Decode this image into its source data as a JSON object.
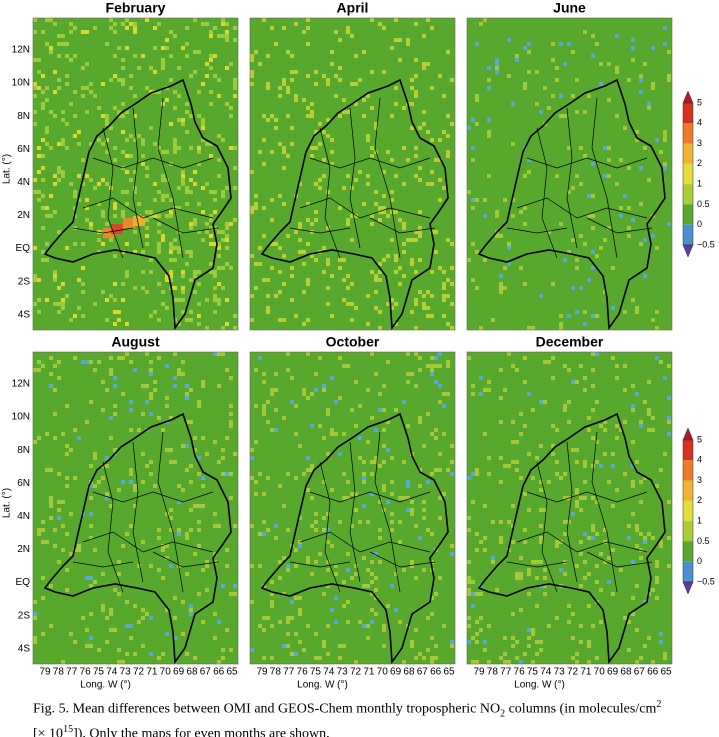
{
  "panels": [
    {
      "title": "February"
    },
    {
      "title": "April"
    },
    {
      "title": "June"
    },
    {
      "title": "August"
    },
    {
      "title": "October"
    },
    {
      "title": "December"
    }
  ],
  "lat_label": "Lat. (°)",
  "lat_ticks": [
    "12N",
    "10N",
    "8N",
    "6N",
    "4N",
    "2N",
    "EQ",
    "2S",
    "4S"
  ],
  "lon_label": "Long. W (°)",
  "lon_ticks": [
    "79",
    "78",
    "77",
    "76",
    "75",
    "74",
    "73",
    "72",
    "71",
    "70",
    "69",
    "68",
    "67",
    "66",
    "65"
  ],
  "colorbar_labels": [
    "5",
    "4",
    "3",
    "2",
    "1",
    "0.5",
    "0",
    "−0.5"
  ],
  "caption": [
    "Fig. 5. Mean differences between OMI and GEOS-Chem monthly tropospheric NO",
    "2",
    " columns (in molecules/cm",
    "2",
    " [× 10",
    "15",
    "]). Only the maps for even months are shown."
  ]
}
